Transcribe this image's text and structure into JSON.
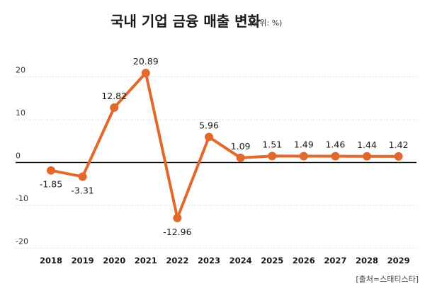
{
  "chart_data": {
    "type": "line",
    "title": "국내 기업 금융 매출 변화",
    "subtitle": "(단위: %)",
    "source": "[출처=스태티스타]",
    "categories": [
      "2018",
      "2019",
      "2020",
      "2021",
      "2022",
      "2023",
      "2024",
      "2025",
      "2026",
      "2027",
      "2028",
      "2029"
    ],
    "values": [
      -1.85,
      -3.31,
      12.82,
      20.89,
      -12.96,
      5.96,
      1.09,
      1.51,
      1.49,
      1.46,
      1.44,
      1.42
    ],
    "labels": [
      "-1.85",
      "-3.31",
      "12.82",
      "20.89",
      "-12.96",
      "5.96",
      "1.09",
      "1.51",
      "1.49",
      "1.46",
      "1.44",
      "1.42"
    ],
    "yticks": [
      20,
      10,
      0,
      -10,
      -20
    ],
    "ylim": [
      -20,
      20
    ],
    "grid": true,
    "colors": {
      "line": "#e2692b",
      "grid": "#cccccc",
      "zero": "#111111"
    }
  }
}
